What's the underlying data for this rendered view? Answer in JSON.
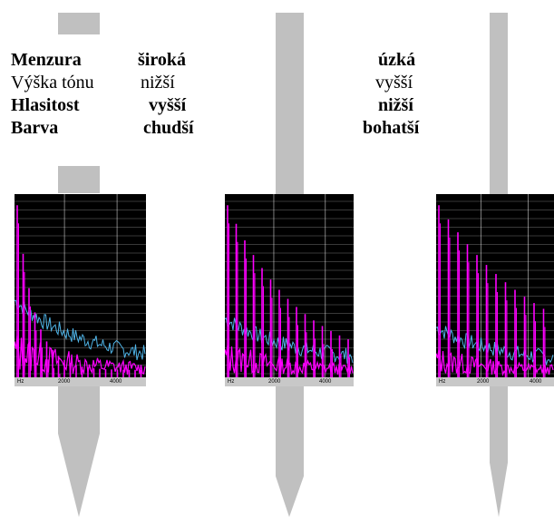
{
  "rows": [
    {
      "label": "Menzura",
      "wide": "široká",
      "narrow": "úzká",
      "bold": true
    },
    {
      "label": "Výška tónu",
      "wide": "nižší",
      "narrow": "vyšší",
      "bold": false
    },
    {
      "label": "Hlasitost",
      "wide": "vyšší",
      "narrow": "nižší",
      "bold": true
    },
    {
      "label": "Barva",
      "wide": "chudší",
      "narrow": "bohatší",
      "bold": true
    }
  ],
  "spectrum": {
    "axis_unit": "Hz",
    "ticks": [
      "2000",
      "4000"
    ]
  },
  "colors": {
    "pipe": "#c0c0c0",
    "spectrum_bg": "#000000",
    "harmonic": "#ff00ff",
    "noise": "#4fb3e6",
    "grid": "#ffffff"
  }
}
